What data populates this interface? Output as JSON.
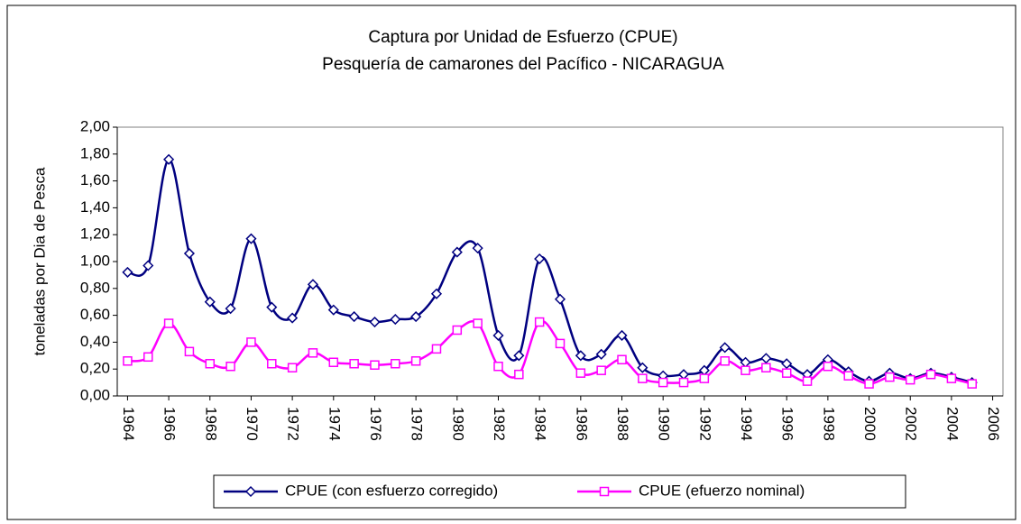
{
  "chart_data": {
    "type": "line",
    "title": "Captura por Unidad de Esfuerzo (CPUE)",
    "subtitle": "Pesquería de camarones del Pacífico -  NICARAGUA",
    "y_label": "toneladas por Dia de Pesca",
    "x": [
      1964,
      1965,
      1966,
      1967,
      1968,
      1969,
      1970,
      1971,
      1972,
      1973,
      1974,
      1975,
      1976,
      1977,
      1978,
      1979,
      1980,
      1981,
      1982,
      1983,
      1984,
      1985,
      1986,
      1987,
      1988,
      1989,
      1990,
      1991,
      1992,
      1993,
      1994,
      1995,
      1996,
      1997,
      1998,
      1999,
      2000,
      2001,
      2002,
      2003,
      2004,
      2005
    ],
    "series": [
      {
        "name": "CPUE (con esfuerzo corregido)",
        "color": "#000080",
        "marker": "diamond",
        "values": [
          0.92,
          0.97,
          1.76,
          1.06,
          0.7,
          0.65,
          1.17,
          0.66,
          0.58,
          0.83,
          0.64,
          0.59,
          0.55,
          0.57,
          0.59,
          0.76,
          1.07,
          1.1,
          0.45,
          0.3,
          1.02,
          0.72,
          0.3,
          0.31,
          0.45,
          0.21,
          0.15,
          0.16,
          0.19,
          0.36,
          0.25,
          0.28,
          0.24,
          0.16,
          0.27,
          0.18,
          0.11,
          0.17,
          0.13,
          0.17,
          0.14,
          0.1
        ]
      },
      {
        "name": "CPUE (efuerzo nominal)",
        "color": "#ff00ff",
        "marker": "square",
        "values": [
          0.26,
          0.29,
          0.54,
          0.33,
          0.24,
          0.22,
          0.4,
          0.24,
          0.21,
          0.32,
          0.25,
          0.24,
          0.23,
          0.24,
          0.26,
          0.35,
          0.49,
          0.54,
          0.22,
          0.16,
          0.55,
          0.39,
          0.17,
          0.19,
          0.27,
          0.13,
          0.1,
          0.1,
          0.13,
          0.26,
          0.19,
          0.21,
          0.17,
          0.11,
          0.22,
          0.15,
          0.09,
          0.14,
          0.12,
          0.16,
          0.13,
          0.09
        ]
      }
    ],
    "xlim": [
      1963.5,
      2006.5
    ],
    "xticks": [
      1964,
      1966,
      1968,
      1970,
      1972,
      1974,
      1976,
      1978,
      1980,
      1982,
      1984,
      1986,
      1988,
      1990,
      1992,
      1994,
      1996,
      1998,
      2000,
      2002,
      2004,
      2006
    ],
    "ylim": [
      0,
      2
    ],
    "yticks": [
      {
        "value": 0,
        "label": "0,00"
      },
      {
        "value": 0.2,
        "label": "0,20"
      },
      {
        "value": 0.4,
        "label": "0,40"
      },
      {
        "value": 0.6,
        "label": "0,60"
      },
      {
        "value": 0.8,
        "label": "0,80"
      },
      {
        "value": 1,
        "label": "1,00"
      },
      {
        "value": 1.2,
        "label": "1,20"
      },
      {
        "value": 1.4,
        "label": "1,40"
      },
      {
        "value": 1.6,
        "label": "1,60"
      },
      {
        "value": 1.8,
        "label": "1,80"
      },
      {
        "value": 2,
        "label": "2,00"
      }
    ],
    "smooth": true,
    "legend": "bottom"
  }
}
